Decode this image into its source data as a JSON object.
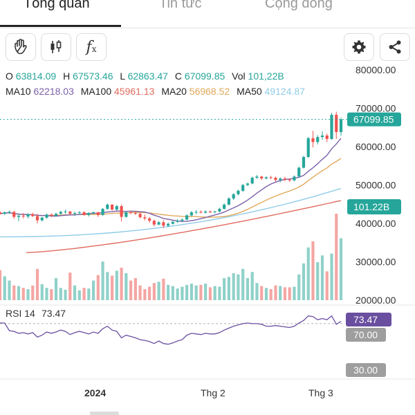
{
  "tabs": [
    {
      "label": "Tổng quan",
      "active": true
    },
    {
      "label": "Tin tức",
      "active": false
    },
    {
      "label": "Cộng đồng",
      "active": false
    }
  ],
  "toolbar": {
    "icons": [
      "hand-wave-icon",
      "candlestick-icon",
      "function-icon",
      "gear-icon",
      "share-icon"
    ],
    "function_label": "f",
    "function_sub": "x"
  },
  "ohlc": {
    "o_label": "O",
    "o_value": "63814.09",
    "h_label": "H",
    "h_value": "67573.46",
    "l_label": "L",
    "l_value": "62863.47",
    "c_label": "C",
    "c_value": "67099.85",
    "vol_label": "Vol",
    "vol_value": "101,22B"
  },
  "moving_averages": [
    {
      "label": "MA10",
      "value": "62218.03",
      "color": "#7b5fa8"
    },
    {
      "label": "MA100",
      "value": "45961.13",
      "color": "#e06a5e"
    },
    {
      "label": "MA20",
      "value": "56968.52",
      "color": "#e0a85a"
    },
    {
      "label": "MA50",
      "value": "49124.87",
      "color": "#8fcbe8"
    }
  ],
  "colors": {
    "up": "#26a69a",
    "down": "#ef5350",
    "price_badge": "#26a69a",
    "rsi_line": "#6a4fa0",
    "rsi_badge": "#6a4fa0",
    "level_badge": "#9e9e9e",
    "ohlc_values": "#26a69a"
  },
  "price_badge": "67099.85",
  "volume_badge": "101.22B",
  "rsi": {
    "label": "RSI 14",
    "value": "73.47",
    "upper": "70.00",
    "lower": "30.00"
  },
  "chart_data": {
    "type": "candlestick",
    "y_ticks": [
      "80000.00",
      "70000.00",
      "60000.00",
      "50000.00",
      "40000.00",
      "30000.00",
      "20000.00"
    ],
    "ylim": [
      20000,
      82000
    ],
    "x_ticks": [
      "2024",
      "Thg 2",
      "Thg 3"
    ],
    "last_close": 67099.85,
    "candles": [
      [
        42900,
        43200,
        42300,
        42500
      ],
      [
        42500,
        43100,
        42200,
        42900
      ],
      [
        42900,
        43400,
        42500,
        43000
      ],
      [
        43000,
        43300,
        41200,
        41700
      ],
      [
        41700,
        42500,
        40600,
        42000
      ],
      [
        42000,
        42700,
        41300,
        41800
      ],
      [
        41800,
        42600,
        41300,
        42400
      ],
      [
        42400,
        42800,
        41700,
        41900
      ],
      [
        41900,
        42500,
        40000,
        40800
      ],
      [
        40800,
        41700,
        40500,
        41500
      ],
      [
        41500,
        42600,
        41200,
        42300
      ],
      [
        42300,
        42600,
        41600,
        42000
      ],
      [
        42000,
        42800,
        41800,
        42500
      ],
      [
        42500,
        43300,
        42300,
        43000
      ],
      [
        43000,
        43600,
        42500,
        43100
      ],
      [
        43100,
        43200,
        42300,
        42500
      ],
      [
        42500,
        43100,
        41900,
        42700
      ],
      [
        42700,
        43200,
        42300,
        42900
      ],
      [
        42900,
        43200,
        42000,
        42200
      ],
      [
        42200,
        42900,
        41800,
        42700
      ],
      [
        42700,
        43100,
        42300,
        42900
      ],
      [
        42900,
        43000,
        41700,
        42200
      ],
      [
        42200,
        44000,
        42000,
        43800
      ],
      [
        43800,
        45200,
        43500,
        44900
      ],
      [
        44900,
        45000,
        43300,
        43600
      ],
      [
        43600,
        44800,
        43400,
        44500
      ],
      [
        44500,
        44900,
        40500,
        41700
      ],
      [
        41700,
        43200,
        41500,
        42900
      ],
      [
        42900,
        43300,
        42400,
        42700
      ],
      [
        42700,
        43100,
        42200,
        42500
      ],
      [
        42500,
        42800,
        41300,
        41600
      ],
      [
        41600,
        42300,
        40800,
        41300
      ],
      [
        41300,
        41700,
        40200,
        40700
      ],
      [
        40700,
        41000,
        39200,
        39700
      ],
      [
        39700,
        40600,
        39500,
        40300
      ],
      [
        40300,
        40800,
        38800,
        39400
      ],
      [
        39400,
        40200,
        39100,
        39900
      ],
      [
        39900,
        40700,
        39700,
        40400
      ],
      [
        40400,
        41100,
        40100,
        40700
      ],
      [
        40700,
        41300,
        40400,
        41000
      ],
      [
        41000,
        42400,
        40800,
        42100
      ],
      [
        42100,
        43200,
        41800,
        42900
      ],
      [
        42900,
        43500,
        42400,
        43000
      ],
      [
        43000,
        43400,
        42600,
        42800
      ],
      [
        42800,
        43400,
        42600,
        43100
      ],
      [
        43100,
        43400,
        42700,
        42900
      ],
      [
        42900,
        43300,
        42600,
        43100
      ],
      [
        43100,
        44100,
        42900,
        43800
      ],
      [
        43800,
        45200,
        43600,
        44900
      ],
      [
        44900,
        46800,
        44700,
        46500
      ],
      [
        46500,
        47900,
        46100,
        47600
      ],
      [
        47600,
        48800,
        47300,
        48500
      ],
      [
        48500,
        50300,
        48200,
        50000
      ],
      [
        50000,
        50600,
        49700,
        50400
      ],
      [
        50400,
        52200,
        50200,
        51900
      ],
      [
        51900,
        52600,
        51600,
        52200
      ],
      [
        52200,
        52400,
        51300,
        51700
      ],
      [
        51700,
        52300,
        51500,
        52000
      ],
      [
        52000,
        52400,
        51500,
        51900
      ],
      [
        51900,
        52200,
        50900,
        51300
      ],
      [
        51300,
        52000,
        50700,
        51700
      ],
      [
        51700,
        52100,
        51000,
        51400
      ],
      [
        51400,
        51700,
        50800,
        51200
      ],
      [
        51200,
        52500,
        51000,
        52200
      ],
      [
        52200,
        54800,
        52000,
        54500
      ],
      [
        54500,
        57600,
        54300,
        57300
      ],
      [
        57300,
        62500,
        57100,
        62200
      ],
      [
        62200,
        64100,
        59800,
        61200
      ],
      [
        61200,
        63000,
        60600,
        62500
      ],
      [
        62500,
        64000,
        61800,
        62900
      ],
      [
        62900,
        63400,
        61200,
        62000
      ],
      [
        62000,
        68800,
        61800,
        68300
      ],
      [
        68300,
        69100,
        62000,
        63800
      ],
      [
        63800,
        67573.46,
        62863.47,
        67099.85
      ]
    ],
    "volumes": [
      4.9,
      3.9,
      3.2,
      2.4,
      2.3,
      2.0,
      1.8,
      2.4,
      5.1,
      2.6,
      2.0,
      1.8,
      3.6,
      2.0,
      1.7,
      4.5,
      2.4,
      1.6,
      2.0,
      1.9,
      3.2,
      4.1,
      6.3,
      4.6,
      4.0,
      4.8,
      5.3,
      4.4,
      3.2,
      3.6,
      2.4,
      1.8,
      2.2,
      2.8,
      3.0,
      3.5,
      2.5,
      2.3,
      1.9,
      2.2,
      2.5,
      2.7,
      2.4,
      2.5,
      2.7,
      2.1,
      2.3,
      2.2,
      3.6,
      3.8,
      4.4,
      4.2,
      5.1,
      3.6,
      4.6,
      2.8,
      2.3,
      2.0,
      1.8,
      2.4,
      2.3,
      2.1,
      2.1,
      2.2,
      4.2,
      6.0,
      8.6,
      9.6,
      6.2,
      7.3,
      4.7,
      7.6,
      14.1,
      10.1
    ],
    "volume_scale_note": "",
    "rsi_values": [
      71,
      71,
      59,
      58,
      55,
      56,
      54,
      56,
      49,
      52,
      57,
      55,
      57,
      60,
      58,
      53,
      56,
      58,
      56,
      54,
      57,
      55,
      62,
      66,
      60,
      58,
      48,
      52,
      50,
      48,
      45,
      44,
      42,
      39,
      43,
      39,
      38,
      40,
      43,
      45,
      52,
      55,
      54,
      53,
      55,
      54,
      54,
      56,
      60,
      63,
      66,
      68,
      70,
      71,
      70,
      70,
      69,
      66,
      66,
      67,
      66,
      65,
      64,
      66,
      71,
      75,
      82,
      81,
      76,
      78,
      76,
      82,
      69,
      73.47
    ]
  }
}
